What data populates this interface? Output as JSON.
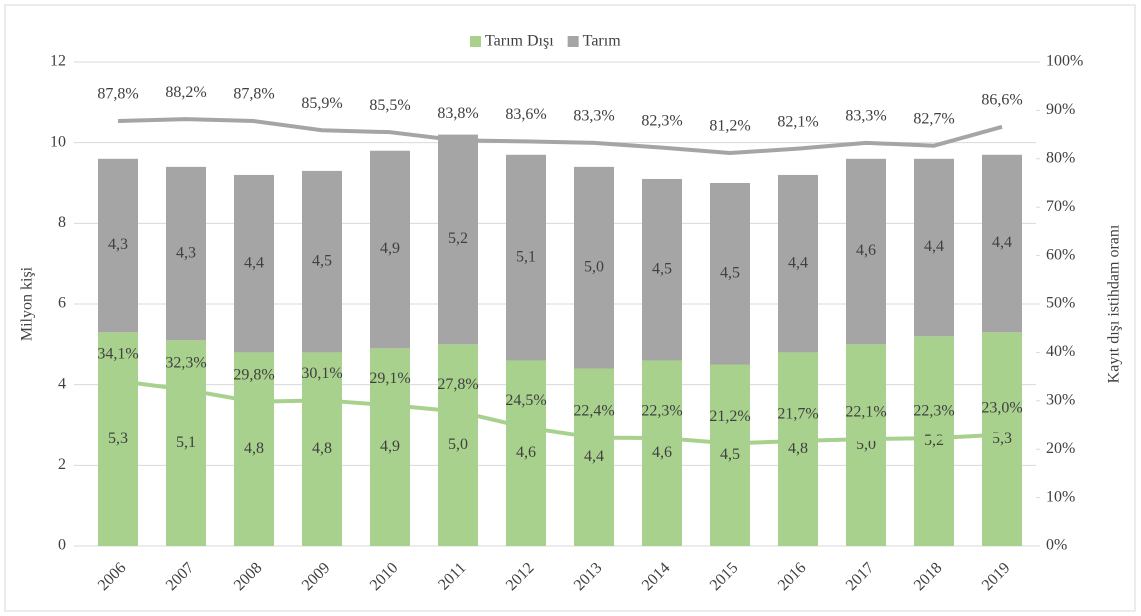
{
  "chart_data": {
    "type": "bar",
    "categories": [
      "2006",
      "2007",
      "2008",
      "2009",
      "2010",
      "2011",
      "2012",
      "2013",
      "2014",
      "2015",
      "2016",
      "2017",
      "2018",
      "2019"
    ],
    "series": [
      {
        "name": "Tarım Dışı",
        "color": "#a9d18e",
        "values": [
          5.3,
          5.1,
          4.8,
          4.8,
          4.9,
          5.0,
          4.6,
          4.4,
          4.6,
          4.5,
          4.8,
          5.0,
          5.2,
          5.3
        ],
        "value_labels": [
          "5,3",
          "5,1",
          "4,8",
          "4,8",
          "4,9",
          "5,0",
          "4,6",
          "4,4",
          "4,6",
          "4,5",
          "4,8",
          "5,0",
          "5,2",
          "5,3"
        ]
      },
      {
        "name": "Tarım",
        "color": "#a5a5a5",
        "values": [
          4.3,
          4.3,
          4.4,
          4.5,
          4.9,
          5.2,
          5.1,
          5.0,
          4.5,
          4.5,
          4.4,
          4.6,
          4.4,
          4.4
        ],
        "value_labels": [
          "4,3",
          "4,3",
          "4,4",
          "4,5",
          "4,9",
          "5,2",
          "5,1",
          "5,0",
          "4,5",
          "4,5",
          "4,4",
          "4,6",
          "4,4",
          "4,4"
        ]
      },
      {
        "axis": "y2",
        "color": "#a5a5a5",
        "values": [
          87.8,
          88.2,
          87.8,
          85.9,
          85.5,
          83.8,
          83.6,
          83.3,
          82.3,
          81.2,
          82.1,
          83.3,
          82.7,
          86.6
        ],
        "value_labels": [
          "87,8%",
          "88,2%",
          "87,8%",
          "85,9%",
          "85,5%",
          "83,8%",
          "83,6%",
          "83,3%",
          "82,3%",
          "81,2%",
          "82,1%",
          "83,3%",
          "82,7%",
          "86,6%"
        ]
      },
      {
        "axis": "y2",
        "color": "#a9d18e",
        "values": [
          34.1,
          32.3,
          29.8,
          30.1,
          29.1,
          27.8,
          24.5,
          22.4,
          22.3,
          21.2,
          21.7,
          22.1,
          22.3,
          23.0
        ],
        "value_labels": [
          "34,1%",
          "32,3%",
          "29,8%",
          "30,1%",
          "29,1%",
          "27,8%",
          "24,5%",
          "22,4%",
          "22,3%",
          "21,2%",
          "21,7%",
          "22,1%",
          "22,3%",
          "23,0%"
        ]
      }
    ],
    "ylabel": "Milyon kişi",
    "y2label": "Kayıt dışı istihdam oranı",
    "ylim": [
      0,
      12
    ],
    "yticks": [
      0,
      2,
      4,
      6,
      8,
      10,
      12
    ],
    "y2lim": [
      0,
      100
    ],
    "y2ticks": [
      {
        "value": 0,
        "label": "0%"
      },
      {
        "value": 10,
        "label": "10%"
      },
      {
        "value": 20,
        "label": "20%"
      },
      {
        "value": 30,
        "label": "30%"
      },
      {
        "value": 40,
        "label": "40%"
      },
      {
        "value": 50,
        "label": "50%"
      },
      {
        "value": 60,
        "label": "60%"
      },
      {
        "value": 70,
        "label": "70%"
      },
      {
        "value": 80,
        "label": "80%"
      },
      {
        "value": 90,
        "label": "90%"
      },
      {
        "value": 100,
        "label": "100%"
      }
    ],
    "grid": true,
    "legend": "top",
    "stacked": true
  }
}
